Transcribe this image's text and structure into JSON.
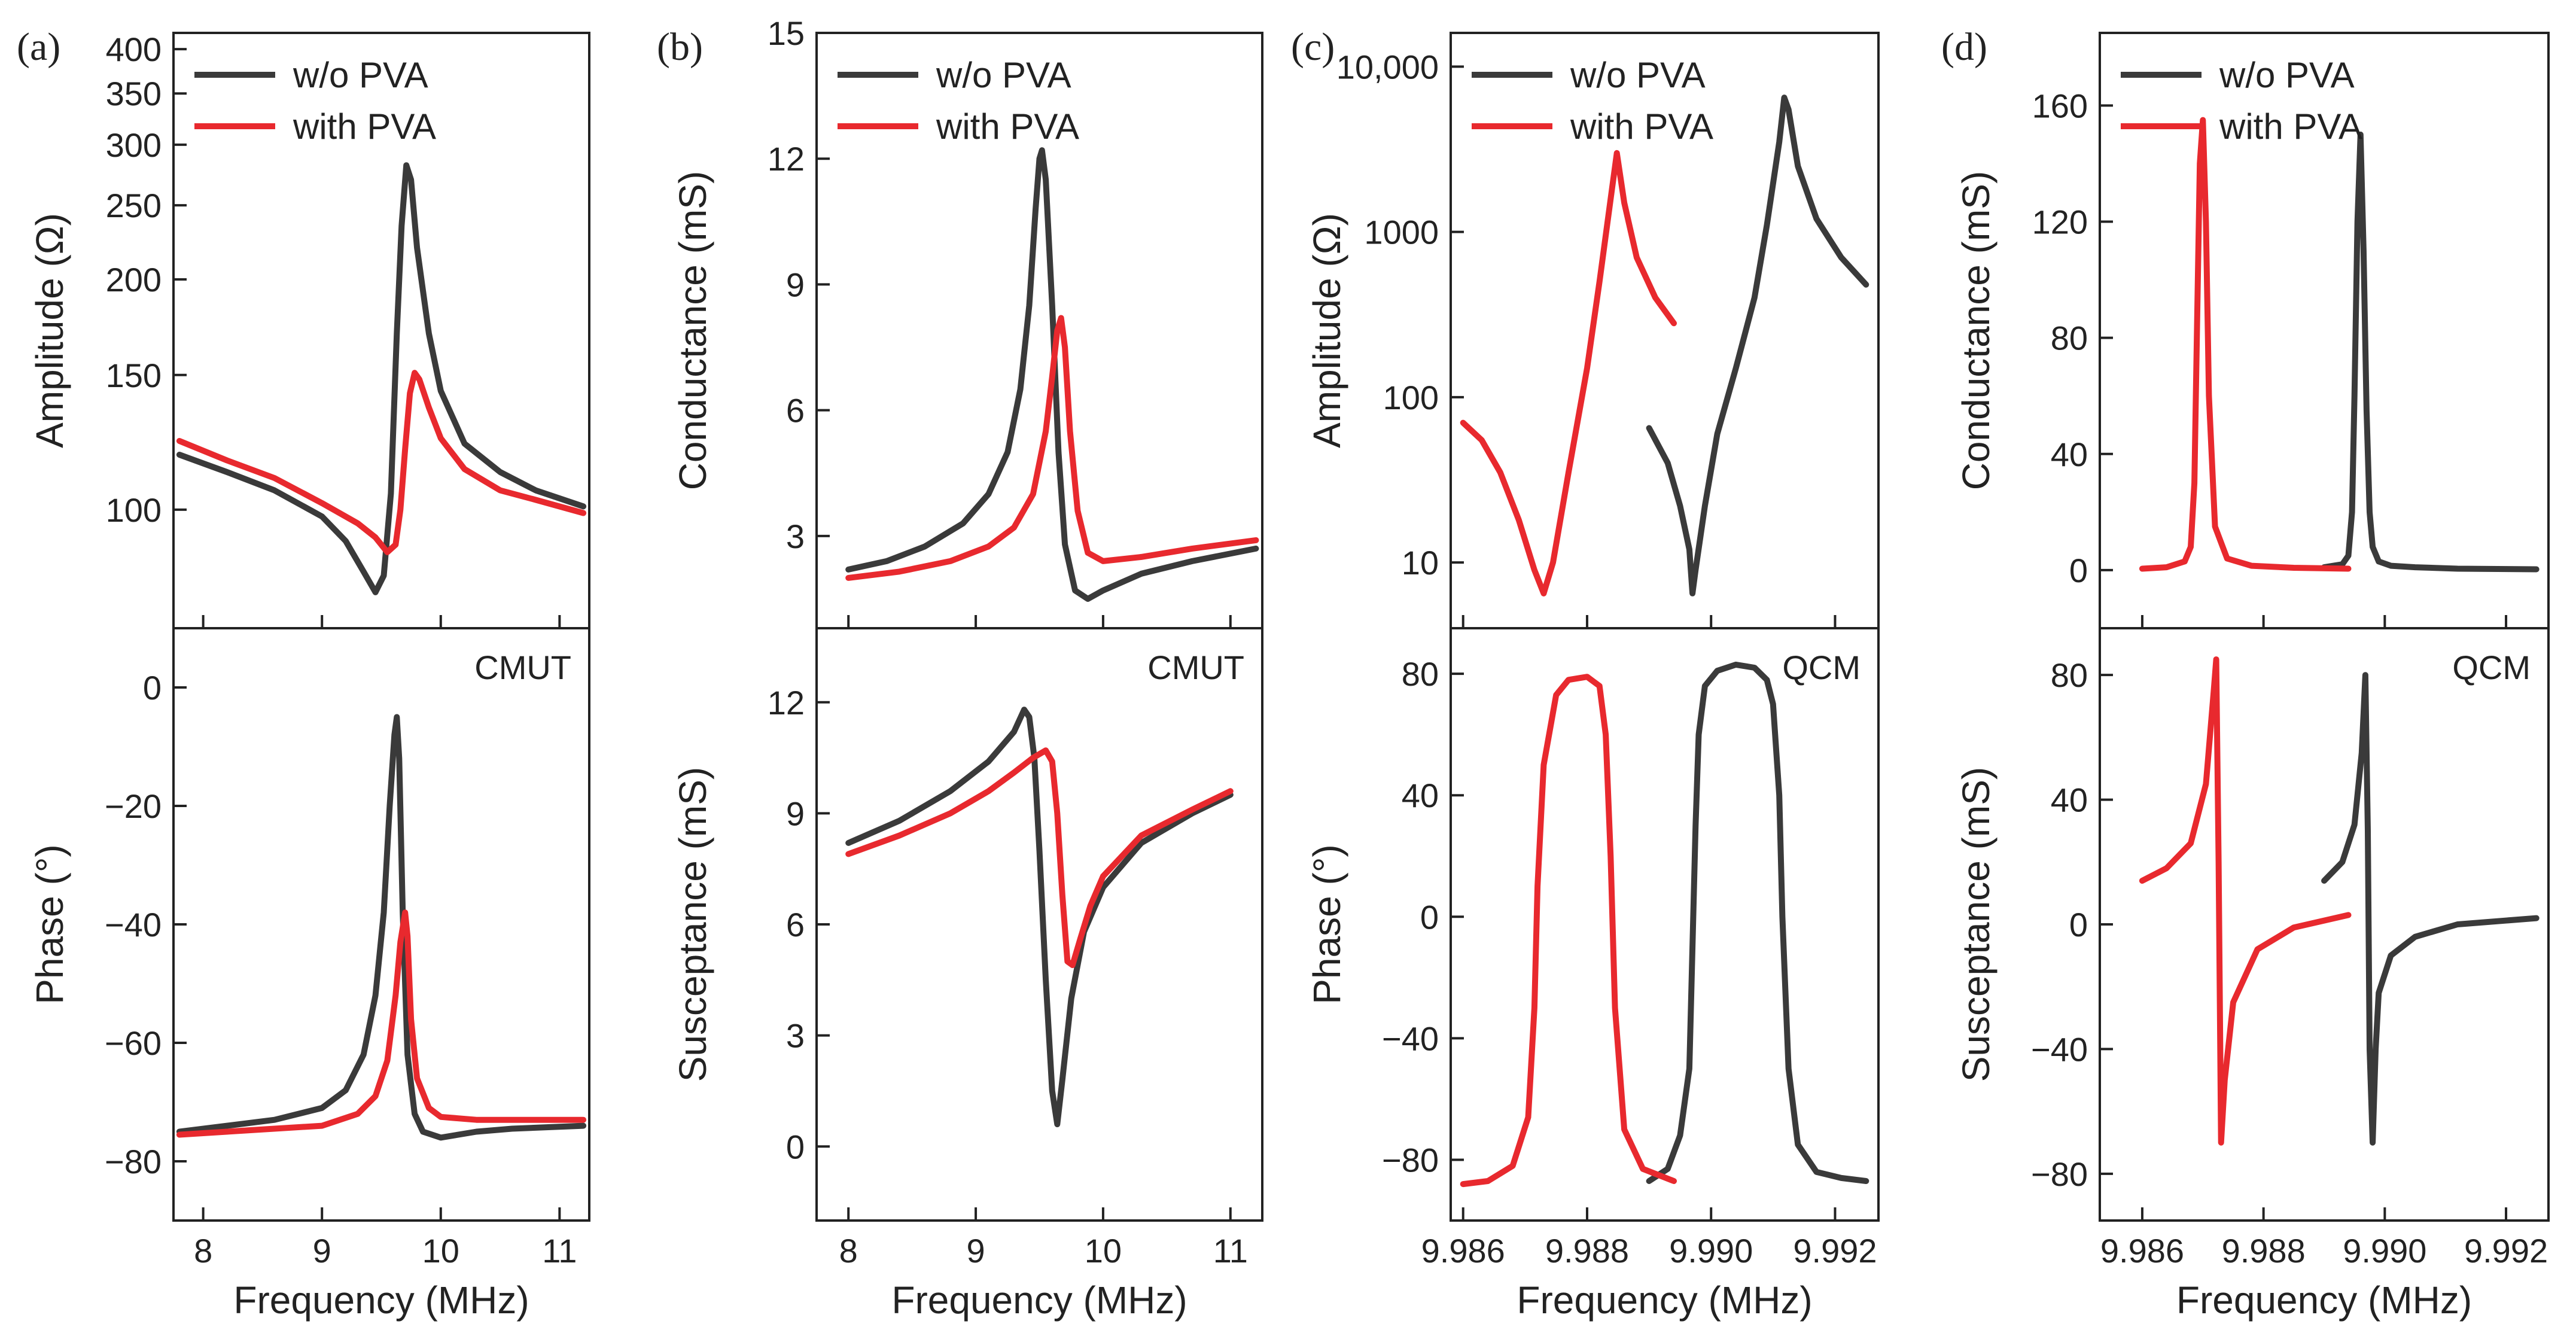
{
  "colors": {
    "without": "#3a3a3a",
    "with": "#e8292e"
  },
  "legend": {
    "without": "w/o PVA",
    "with": "with PVA"
  },
  "chart_data": [
    {
      "panel": "(a)",
      "device": "CMUT",
      "type": "line",
      "xlabel": "Frequency (MHz)",
      "xlim": [
        7.75,
        11.25
      ],
      "xticks": [
        8,
        9,
        10,
        11
      ],
      "xticklabels": [
        "8",
        "9",
        "10",
        "11"
      ],
      "top": {
        "ylabel": "Amplitude (Ω)",
        "yscale": "log",
        "ylim": [
          70,
          420
        ],
        "yticks": [
          100,
          150,
          200,
          250,
          300,
          350,
          400
        ],
        "yticklabels": [
          "100",
          "150",
          "200",
          "250",
          "300",
          "350",
          "400"
        ],
        "series": [
          {
            "name": "w/o PVA",
            "x": [
              7.8,
              8.2,
              8.6,
              9.0,
              9.2,
              9.35,
              9.45,
              9.52,
              9.58,
              9.63,
              9.67,
              9.71,
              9.75,
              9.8,
              9.9,
              10.0,
              10.2,
              10.5,
              10.8,
              11.2
            ],
            "y": [
              118,
              112,
              106,
              98,
              91,
              83,
              78,
              82,
              105,
              170,
              235,
              282,
              270,
              220,
              170,
              143,
              122,
              112,
              106,
              101
            ]
          },
          {
            "name": "with PVA",
            "x": [
              7.8,
              8.2,
              8.6,
              9.0,
              9.3,
              9.45,
              9.55,
              9.62,
              9.66,
              9.7,
              9.74,
              9.78,
              9.82,
              9.9,
              10.0,
              10.2,
              10.5,
              10.8,
              11.2
            ],
            "y": [
              123,
              116,
              110,
              102,
              96,
              92,
              88,
              90,
              100,
              120,
              142,
              151,
              148,
              136,
              124,
              113,
              106,
              103,
              99
            ]
          }
        ]
      },
      "bottom": {
        "ylabel": "Phase (°)",
        "ylim": [
          -90,
          10
        ],
        "yticks": [
          -80,
          -60,
          -40,
          -20,
          0
        ],
        "yticklabels": [
          "−80",
          "−60",
          "−40",
          "−20",
          "0"
        ],
        "series": [
          {
            "name": "w/o PVA",
            "x": [
              7.8,
              8.2,
              8.6,
              9.0,
              9.2,
              9.35,
              9.45,
              9.52,
              9.57,
              9.61,
              9.63,
              9.65,
              9.68,
              9.72,
              9.78,
              9.85,
              10.0,
              10.3,
              10.6,
              11.2
            ],
            "y": [
              -75,
              -74,
              -73,
              -71,
              -68,
              -62,
              -52,
              -38,
              -20,
              -8,
              -5,
              -12,
              -38,
              -62,
              -72,
              -75,
              -76,
              -75,
              -74.5,
              -74
            ]
          },
          {
            "name": "with PVA",
            "x": [
              7.8,
              8.2,
              8.6,
              9.0,
              9.3,
              9.45,
              9.55,
              9.62,
              9.66,
              9.7,
              9.72,
              9.75,
              9.8,
              9.9,
              10.0,
              10.3,
              10.6,
              11.2
            ],
            "y": [
              -75.5,
              -75,
              -74.5,
              -74,
              -72,
              -69,
              -63,
              -52,
              -43,
              -38,
              -42,
              -56,
              -66,
              -71,
              -72.5,
              -73,
              -73,
              -73
            ]
          }
        ]
      }
    },
    {
      "panel": "(b)",
      "device": "CMUT",
      "type": "line",
      "xlabel": "Frequency (MHz)",
      "xlim": [
        7.75,
        11.25
      ],
      "xticks": [
        8,
        9,
        10,
        11
      ],
      "xticklabels": [
        "8",
        "9",
        "10",
        "11"
      ],
      "top": {
        "ylabel": "Conductance (mS)",
        "ylim": [
          0.8,
          15
        ],
        "yticks": [
          3,
          6,
          9,
          12,
          15
        ],
        "yticklabels": [
          "3",
          "6",
          "9",
          "12",
          "15"
        ],
        "series": [
          {
            "name": "w/o PVA",
            "x": [
              8.0,
              8.3,
              8.6,
              8.9,
              9.1,
              9.25,
              9.35,
              9.42,
              9.47,
              9.5,
              9.52,
              9.55,
              9.6,
              9.65,
              9.7,
              9.78,
              9.88,
              10.0,
              10.3,
              10.7,
              11.2
            ],
            "y": [
              2.2,
              2.4,
              2.75,
              3.3,
              4.0,
              5.0,
              6.5,
              8.5,
              10.8,
              12.0,
              12.2,
              11.5,
              8.5,
              5.0,
              2.8,
              1.7,
              1.5,
              1.7,
              2.1,
              2.4,
              2.7
            ]
          },
          {
            "name": "with PVA",
            "x": [
              8.0,
              8.4,
              8.8,
              9.1,
              9.3,
              9.45,
              9.55,
              9.6,
              9.64,
              9.67,
              9.7,
              9.74,
              9.8,
              9.88,
              10.0,
              10.3,
              10.7,
              11.2
            ],
            "y": [
              2.0,
              2.15,
              2.4,
              2.75,
              3.2,
              4.0,
              5.5,
              6.8,
              7.9,
              8.2,
              7.5,
              5.5,
              3.6,
              2.6,
              2.4,
              2.5,
              2.7,
              2.9
            ]
          }
        ]
      },
      "bottom": {
        "ylabel": "Susceptance (mS)",
        "ylim": [
          -2,
          14
        ],
        "yticks": [
          0,
          3,
          6,
          9,
          12
        ],
        "yticklabels": [
          "0",
          "3",
          "6",
          "9",
          "12"
        ],
        "series": [
          {
            "name": "w/o PVA",
            "x": [
              8.0,
              8.4,
              8.8,
              9.1,
              9.3,
              9.38,
              9.42,
              9.46,
              9.5,
              9.55,
              9.6,
              9.64,
              9.68,
              9.75,
              9.85,
              10.0,
              10.3,
              10.7,
              11.0
            ],
            "y": [
              8.2,
              8.8,
              9.6,
              10.4,
              11.2,
              11.8,
              11.6,
              10.5,
              8.0,
              4.5,
              1.5,
              0.6,
              1.8,
              4.0,
              5.8,
              7.0,
              8.2,
              9.0,
              9.5
            ]
          },
          {
            "name": "with PVA",
            "x": [
              8.0,
              8.4,
              8.8,
              9.1,
              9.3,
              9.45,
              9.55,
              9.6,
              9.64,
              9.68,
              9.72,
              9.76,
              9.82,
              9.9,
              10.0,
              10.3,
              10.7,
              11.0
            ],
            "y": [
              7.9,
              8.4,
              9.0,
              9.6,
              10.1,
              10.5,
              10.7,
              10.4,
              9.0,
              6.8,
              5.0,
              4.9,
              5.6,
              6.5,
              7.3,
              8.4,
              9.1,
              9.6
            ]
          }
        ]
      }
    },
    {
      "panel": "(c)",
      "device": "QCM",
      "type": "line",
      "xlabel": "Frequency (MHz)",
      "xlim": [
        9.9858,
        9.9927
      ],
      "xticks": [
        9.986,
        9.988,
        9.99,
        9.992
      ],
      "xticklabels": [
        "9.986",
        "9.988",
        "9.990",
        "9.992"
      ],
      "top": {
        "ylabel": "Amplitude (Ω)",
        "yscale": "log",
        "ylim": [
          4,
          16000
        ],
        "yticks": [
          10,
          100,
          1000,
          10000
        ],
        "yticklabels": [
          "10",
          "100",
          "1000",
          "10,000"
        ],
        "series": [
          {
            "name": "w/o PVA",
            "x": [
              9.989,
              9.9893,
              9.9895,
              9.98965,
              9.9897,
              9.98975,
              9.9899,
              9.9901,
              9.9904,
              9.9907,
              9.9909,
              9.9911,
              9.99118,
              9.99125,
              9.9914,
              9.9917,
              9.9921,
              9.9925
            ],
            "y": [
              65,
              40,
              22,
              12,
              6.5,
              9,
              22,
              60,
              150,
              400,
              1100,
              3500,
              6500,
              5500,
              2500,
              1200,
              700,
              480
            ]
          },
          {
            "name": "with PVA",
            "x": [
              9.986,
              9.9863,
              9.9866,
              9.9869,
              9.98715,
              9.9873,
              9.98745,
              9.9877,
              9.988,
              9.9882,
              9.9884,
              9.98848,
              9.9886,
              9.9888,
              9.9891,
              9.9894
            ],
            "y": [
              70,
              55,
              35,
              18,
              9,
              6.5,
              10,
              35,
              150,
              500,
              1800,
              3000,
              1500,
              700,
              400,
              280
            ]
          }
        ]
      },
      "bottom": {
        "ylabel": "Phase (°)",
        "ylim": [
          -100,
          95
        ],
        "yticks": [
          -80,
          -40,
          0,
          40,
          80
        ],
        "yticklabels": [
          "−80",
          "−40",
          "0",
          "40",
          "80"
        ],
        "series": [
          {
            "name": "w/o PVA",
            "x": [
              9.989,
              9.9893,
              9.9895,
              9.98965,
              9.9897,
              9.98975,
              9.9898,
              9.9899,
              9.9901,
              9.9904,
              9.9907,
              9.9909,
              9.991,
              9.9911,
              9.99115,
              9.99125,
              9.9914,
              9.9917,
              9.9921,
              9.9925
            ],
            "y": [
              -87,
              -83,
              -72,
              -50,
              -10,
              30,
              60,
              76,
              81,
              83,
              82,
              78,
              70,
              40,
              0,
              -50,
              -75,
              -84,
              -86,
              -87
            ]
          },
          {
            "name": "with PVA",
            "x": [
              9.986,
              9.9864,
              9.9868,
              9.98705,
              9.98715,
              9.9872,
              9.9873,
              9.9875,
              9.9877,
              9.988,
              9.9882,
              9.9883,
              9.98838,
              9.98845,
              9.9886,
              9.9889,
              9.9894
            ],
            "y": [
              -88,
              -87,
              -82,
              -66,
              -30,
              10,
              50,
              73,
              78,
              79,
              76,
              60,
              20,
              -30,
              -70,
              -83,
              -87
            ]
          }
        ]
      }
    },
    {
      "panel": "(d)",
      "device": "QCM",
      "type": "line",
      "xlabel": "Frequency (MHz)",
      "xlim": [
        9.9853,
        9.9927
      ],
      "xticks": [
        9.986,
        9.988,
        9.99,
        9.992
      ],
      "xticklabels": [
        "9.986",
        "9.988",
        "9.990",
        "9.992"
      ],
      "top": {
        "ylabel": "Conductance (mS)",
        "ylim": [
          -20,
          185
        ],
        "yticks": [
          0,
          40,
          80,
          120,
          160
        ],
        "yticklabels": [
          "0",
          "40",
          "80",
          "120",
          "160"
        ],
        "series": [
          {
            "name": "w/o PVA",
            "x": [
              9.989,
              9.9893,
              9.9894,
              9.98946,
              9.9895,
              9.98955,
              9.9896,
              9.98965,
              9.9897,
              9.98975,
              9.9898,
              9.9899,
              9.9901,
              9.9905,
              9.9912,
              9.9925
            ],
            "y": [
              1,
              2,
              5,
              20,
              60,
              120,
              150,
              110,
              55,
              20,
              8,
              3,
              1.5,
              1,
              0.5,
              0.3
            ]
          },
          {
            "name": "with PVA",
            "x": [
              9.986,
              9.9864,
              9.9867,
              9.9868,
              9.98686,
              9.9869,
              9.98695,
              9.987,
              9.98705,
              9.9871,
              9.9872,
              9.9874,
              9.9878,
              9.9885,
              9.9894
            ],
            "y": [
              0.5,
              1,
              3,
              8,
              30,
              80,
              140,
              155,
              120,
              60,
              15,
              4,
              1.5,
              0.8,
              0.5
            ]
          }
        ]
      },
      "bottom": {
        "ylabel": "Susceptance (mS)",
        "ylim": [
          -95,
          95
        ],
        "yticks": [
          -80,
          -40,
          0,
          40,
          80
        ],
        "yticklabels": [
          "−80",
          "−40",
          "0",
          "40",
          "80"
        ],
        "series": [
          {
            "name": "w/o PVA",
            "x": [
              9.989,
              9.9893,
              9.9895,
              9.98962,
              9.98968,
              9.98972,
              9.98975,
              9.9898,
              9.98985,
              9.9899,
              9.9901,
              9.9905,
              9.9912,
              9.9925
            ],
            "y": [
              14,
              20,
              32,
              55,
              80,
              30,
              -40,
              -70,
              -40,
              -22,
              -10,
              -4,
              0,
              2
            ]
          },
          {
            "name": "with PVA",
            "x": [
              9.986,
              9.9864,
              9.9868,
              9.98705,
              9.98718,
              9.98722,
              9.98726,
              9.9873,
              9.98736,
              9.9875,
              9.9879,
              9.9885,
              9.9894
            ],
            "y": [
              14,
              18,
              26,
              45,
              75,
              85,
              20,
              -70,
              -50,
              -25,
              -8,
              -1,
              3
            ]
          }
        ]
      }
    }
  ]
}
